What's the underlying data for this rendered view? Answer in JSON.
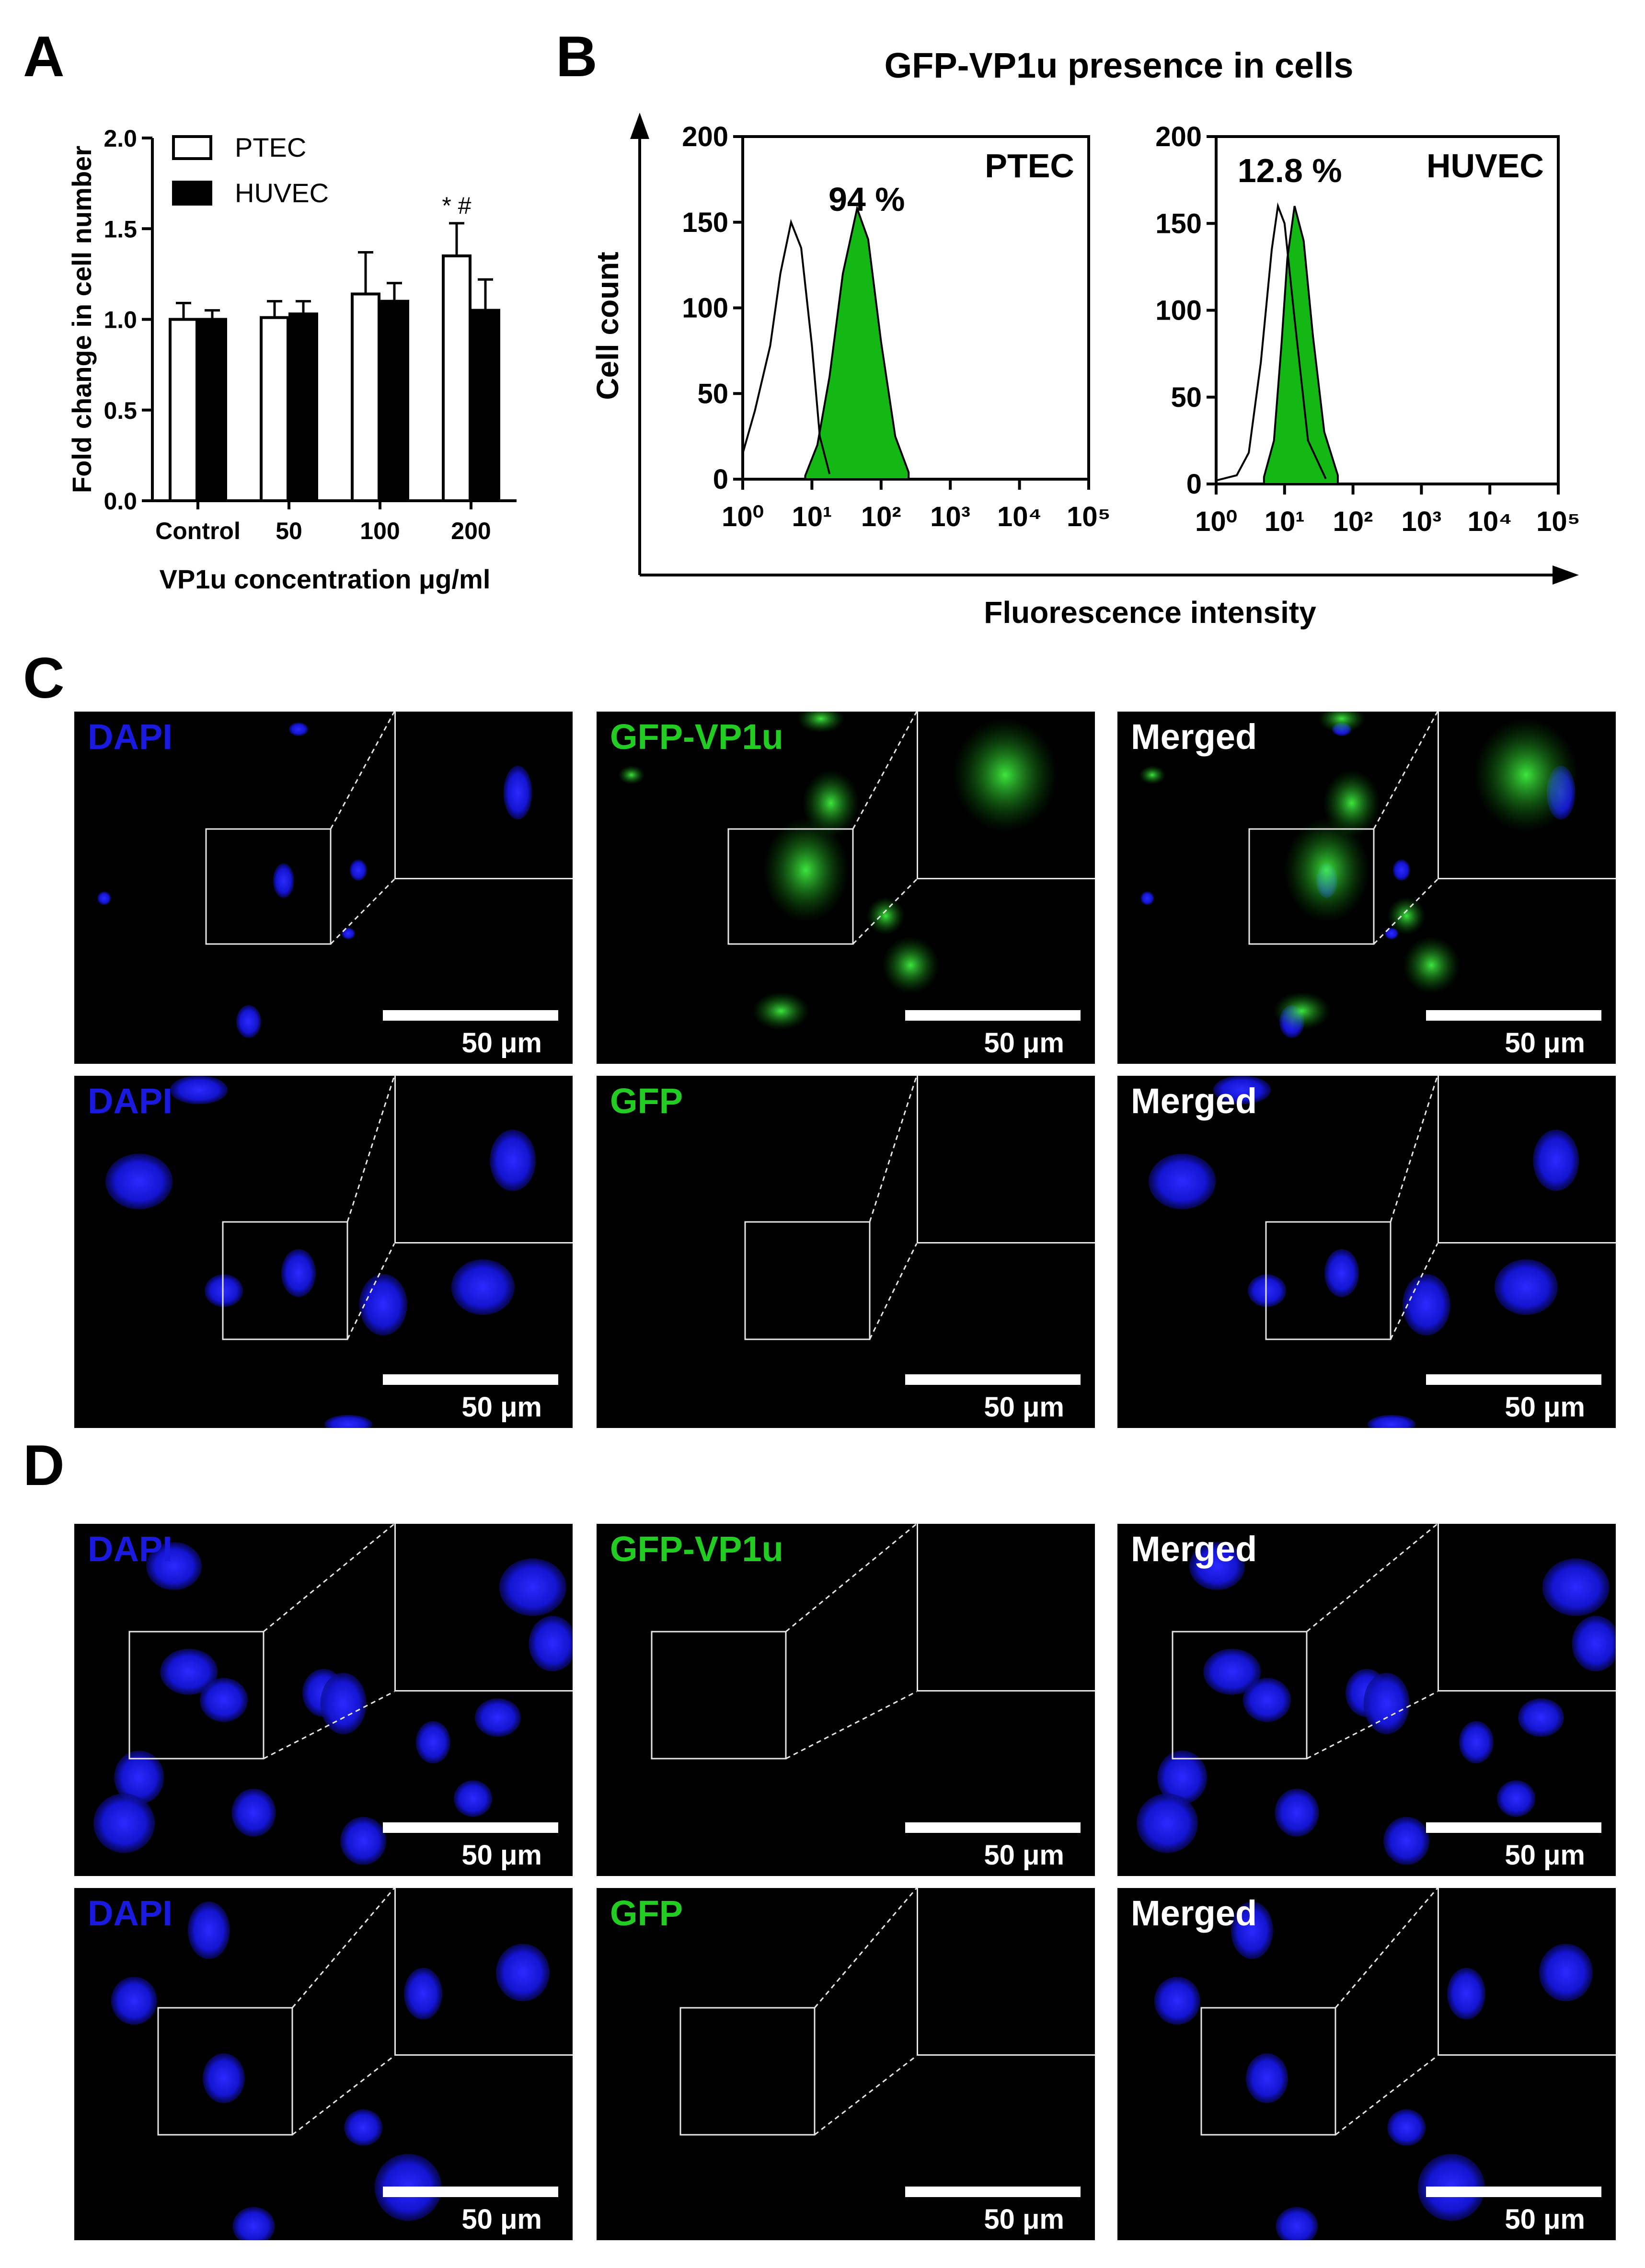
{
  "panels": {
    "a": "A",
    "b": "B",
    "c": "C",
    "d": "D"
  },
  "chart_data": [
    {
      "type": "bar",
      "panel": "A",
      "categories": [
        "Control",
        "50",
        "100",
        "200"
      ],
      "series": [
        {
          "name": "PTEC",
          "values": [
            1.0,
            1.01,
            1.14,
            1.35
          ],
          "errors": [
            0.09,
            0.09,
            0.23,
            0.18
          ],
          "color": "#ffffff"
        },
        {
          "name": "HUVEC",
          "values": [
            1.0,
            1.03,
            1.1,
            1.05
          ],
          "errors": [
            0.05,
            0.07,
            0.1,
            0.17
          ],
          "color": "#000000"
        }
      ],
      "significance": {
        "category": "200",
        "text": "* #"
      },
      "xlabel": "VP1u concentration μg/ml",
      "ylabel": "Fold change in cell number",
      "ylim": [
        0,
        2.0
      ],
      "yticks": [
        "0.0",
        "0.5",
        "1.0",
        "1.5",
        "2.0"
      ],
      "legend_position": "top-left"
    },
    {
      "type": "area",
      "panel": "B",
      "title": "GFP-VP1u presence in cells",
      "xlabel": "Fluorescence intensity",
      "ylabel": "Cell count",
      "x_scale": "log",
      "xticks": [
        "10⁰",
        "10¹",
        "10²",
        "10³",
        "10⁴",
        "10⁵"
      ],
      "yticks": [
        "0",
        "50",
        "100",
        "150",
        "200"
      ],
      "ylim": [
        0,
        200
      ],
      "subplots": [
        {
          "name": "PTEC",
          "percent": "94 %",
          "control_peak": {
            "x": 5,
            "y": 150
          },
          "sample_peak": {
            "x": 45,
            "y": 158
          },
          "control_curve": [
            [
              1,
              15
            ],
            [
              1.5,
              40
            ],
            [
              2.5,
              78
            ],
            [
              3.5,
              120
            ],
            [
              5,
              150
            ],
            [
              7,
              135
            ],
            [
              10,
              78
            ],
            [
              13,
              25
            ],
            [
              18,
              3
            ]
          ],
          "sample_curve": [
            [
              8,
              2
            ],
            [
              12,
              20
            ],
            [
              18,
              60
            ],
            [
              28,
              120
            ],
            [
              45,
              158
            ],
            [
              65,
              140
            ],
            [
              100,
              80
            ],
            [
              160,
              25
            ],
            [
              250,
              4
            ]
          ]
        },
        {
          "name": "HUVEC",
          "percent": "12.8 %",
          "control_peak": {
            "x": 8,
            "y": 160
          },
          "sample_peak": {
            "x": 14,
            "y": 160
          },
          "control_curve": [
            [
              1,
              2
            ],
            [
              2,
              5
            ],
            [
              3,
              18
            ],
            [
              4.5,
              70
            ],
            [
              6.5,
              135
            ],
            [
              8,
              160
            ],
            [
              10,
              150
            ],
            [
              14,
              95
            ],
            [
              22,
              25
            ],
            [
              40,
              3
            ]
          ],
          "sample_curve": [
            [
              5,
              4
            ],
            [
              7,
              25
            ],
            [
              9,
              80
            ],
            [
              11,
              130
            ],
            [
              14,
              160
            ],
            [
              19,
              140
            ],
            [
              26,
              85
            ],
            [
              38,
              30
            ],
            [
              60,
              5
            ]
          ]
        }
      ]
    }
  ],
  "micrographs": {
    "c_row1": [
      {
        "label": "DAPI",
        "scale": "50 μm"
      },
      {
        "label": "GFP-VP1u",
        "scale": "50 μm"
      },
      {
        "label": "Merged",
        "scale": "50 μm"
      }
    ],
    "c_row2": [
      {
        "label": "DAPI",
        "scale": "50 μm"
      },
      {
        "label": "GFP",
        "scale": "50 μm"
      },
      {
        "label": "Merged",
        "scale": "50 μm"
      }
    ],
    "d_row1": [
      {
        "label": "DAPI",
        "scale": "50 μm"
      },
      {
        "label": "GFP-VP1u",
        "scale": "50 μm"
      },
      {
        "label": "Merged",
        "scale": "50 μm"
      }
    ],
    "d_row2": [
      {
        "label": "DAPI",
        "scale": "50 μm"
      },
      {
        "label": "GFP",
        "scale": "50 μm"
      },
      {
        "label": "Merged",
        "scale": "50 μm"
      }
    ]
  },
  "colors": {
    "dapi": "#1a1adf",
    "gfp": "#22cc22",
    "histogram_fill": "#14b814"
  }
}
